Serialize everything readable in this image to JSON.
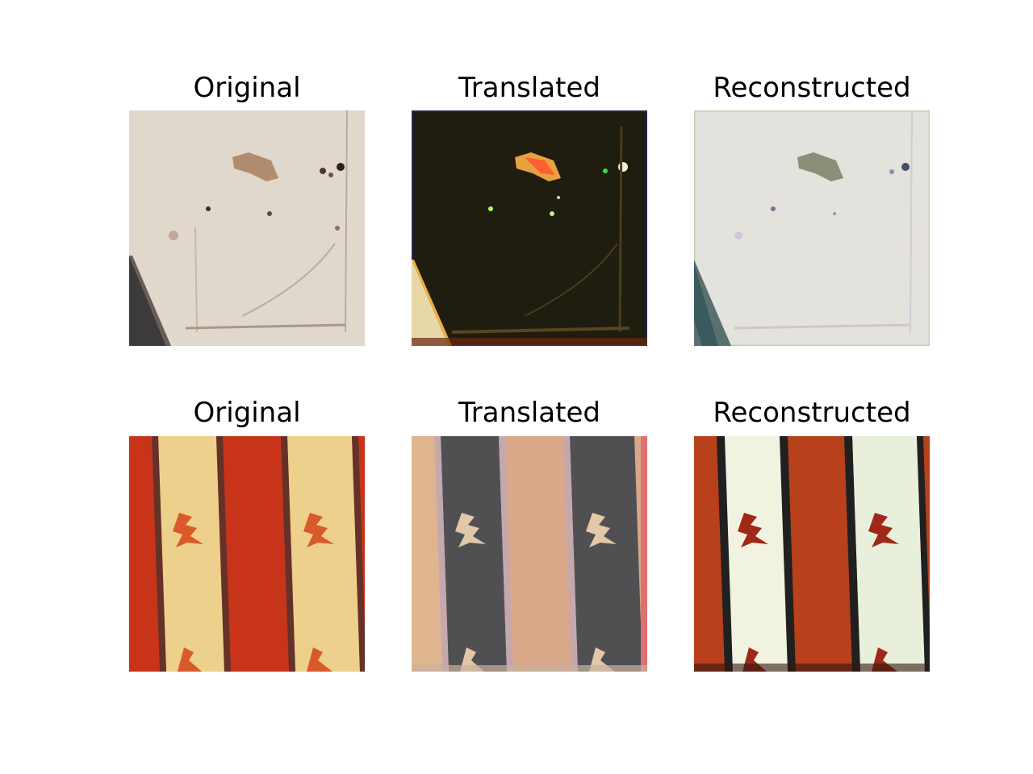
{
  "figure": {
    "rows": [
      {
        "panels": [
          {
            "title": "Original",
            "content": "beige stained surface"
          },
          {
            "title": "Translated",
            "content": "dark brown surface"
          },
          {
            "title": "Reconstructed",
            "content": "pale grey surface"
          }
        ]
      },
      {
        "panels": [
          {
            "title": "Original",
            "content": "red and yellow stripes"
          },
          {
            "title": "Translated",
            "content": "grey and peach stripes"
          },
          {
            "title": "Reconstructed",
            "content": "red and cream stripes"
          }
        ]
      }
    ]
  }
}
